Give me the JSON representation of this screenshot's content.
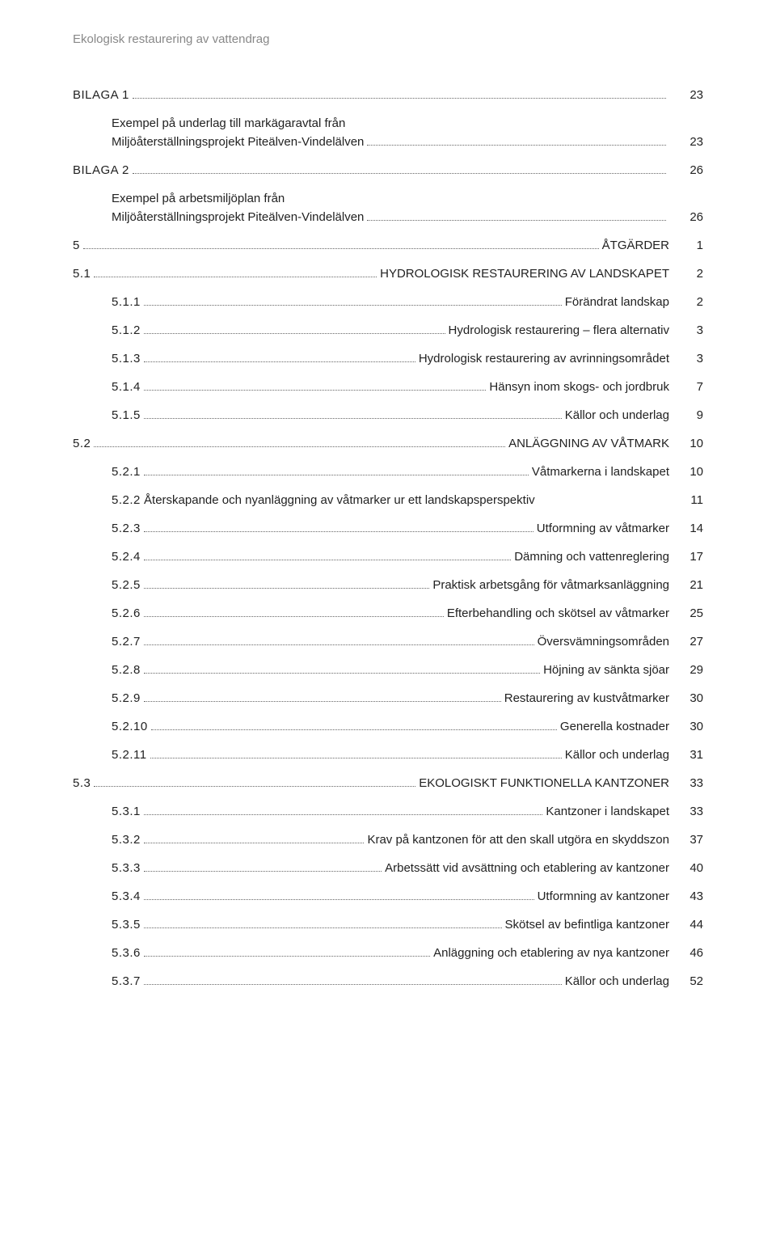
{
  "header": "Ekologisk restaurering av vattendrag",
  "entries": [
    {
      "type": "line",
      "sub": false,
      "lead_num": "BILAGA 1",
      "lead_txt": "",
      "tail": "",
      "page": "23"
    },
    {
      "type": "desc",
      "text": "Exempel på underlag till markägaravtal från\nMiljöåterställningsprojekt Piteälven-Vindelälven",
      "trail_page": "23"
    },
    {
      "type": "line",
      "sub": false,
      "lead_num": "BILAGA 2",
      "lead_txt": "",
      "tail": "",
      "page": "26"
    },
    {
      "type": "desc",
      "text": "Exempel på arbetsmiljöplan från\nMiljöåterställningsprojekt Piteälven-Vindelälven",
      "trail_page": "26"
    },
    {
      "type": "line",
      "sub": false,
      "lead_num": "5",
      "lead_txt": "",
      "tail": "ÅTGÄRDER",
      "page": "1"
    },
    {
      "type": "line",
      "sub": false,
      "lead_num": "5.1",
      "lead_txt": "",
      "tail": "HYDROLOGISK RESTAURERING AV LANDSKAPET",
      "page": "2"
    },
    {
      "type": "line",
      "sub": true,
      "lead_num": "5.1.1",
      "lead_txt": "",
      "tail": "Förändrat landskap",
      "page": "2"
    },
    {
      "type": "line",
      "sub": true,
      "lead_num": "5.1.2",
      "lead_txt": "",
      "tail": "Hydrologisk restaurering – flera alternativ",
      "page": "3"
    },
    {
      "type": "line",
      "sub": true,
      "lead_num": "5.1.3",
      "lead_txt": "",
      "tail": "Hydrologisk restaurering av avrinningsområdet",
      "page": "3"
    },
    {
      "type": "line",
      "sub": true,
      "lead_num": "5.1.4",
      "lead_txt": "",
      "tail": "Hänsyn inom skogs- och jordbruk",
      "page": "7"
    },
    {
      "type": "line",
      "sub": true,
      "lead_num": "5.1.5",
      "lead_txt": "",
      "tail": "Källor och underlag",
      "page": "9"
    },
    {
      "type": "line",
      "sub": false,
      "lead_num": "5.2",
      "lead_txt": "",
      "tail": "ANLÄGGNING AV VÅTMARK",
      "page": "10"
    },
    {
      "type": "line",
      "sub": true,
      "lead_num": "5.2.1",
      "lead_txt": "",
      "tail": "Våtmarkerna i landskapet",
      "page": "10"
    },
    {
      "type": "full",
      "sub": true,
      "lead_num": "5.2.2",
      "lead_txt": "Återskapande och nyanläggning av våtmarker ur ett landskapsperspektiv",
      "tail": "",
      "page": "11"
    },
    {
      "type": "line",
      "sub": true,
      "lead_num": "5.2.3",
      "lead_txt": "",
      "tail": "Utformning av våtmarker",
      "page": "14"
    },
    {
      "type": "line",
      "sub": true,
      "lead_num": "5.2.4",
      "lead_txt": "",
      "tail": "Dämning och vattenreglering",
      "page": "17"
    },
    {
      "type": "line",
      "sub": true,
      "lead_num": "5.2.5",
      "lead_txt": "",
      "tail": "Praktisk arbetsgång för våtmarksanläggning",
      "page": "21"
    },
    {
      "type": "line",
      "sub": true,
      "lead_num": "5.2.6",
      "lead_txt": "",
      "tail": "Efterbehandling och skötsel av våtmarker",
      "page": "25"
    },
    {
      "type": "line",
      "sub": true,
      "lead_num": "5.2.7",
      "lead_txt": "",
      "tail": "Översvämningsområden",
      "page": "27"
    },
    {
      "type": "line",
      "sub": true,
      "lead_num": "5.2.8",
      "lead_txt": "",
      "tail": "Höjning av sänkta sjöar",
      "page": "29"
    },
    {
      "type": "line",
      "sub": true,
      "lead_num": "5.2.9",
      "lead_txt": "",
      "tail": "Restaurering av kustvåtmarker",
      "page": "30"
    },
    {
      "type": "line",
      "sub": true,
      "lead_num": "5.2.10",
      "lead_txt": "",
      "tail": "Generella kostnader",
      "page": "30"
    },
    {
      "type": "line",
      "sub": true,
      "lead_num": "5.2.11",
      "lead_txt": "",
      "tail": "Källor och underlag",
      "page": "31"
    },
    {
      "type": "line",
      "sub": false,
      "lead_num": "5.3",
      "lead_txt": "",
      "tail": "EKOLOGISKT FUNKTIONELLA KANTZONER",
      "page": "33"
    },
    {
      "type": "line",
      "sub": true,
      "lead_num": "5.3.1",
      "lead_txt": "",
      "tail": "Kantzoner i landskapet",
      "page": "33"
    },
    {
      "type": "line",
      "sub": true,
      "lead_num": "5.3.2",
      "lead_txt": "",
      "tail": "Krav på kantzonen för att den skall utgöra en skyddszon",
      "page": "37"
    },
    {
      "type": "line",
      "sub": true,
      "lead_num": "5.3.3",
      "lead_txt": "",
      "tail": "Arbetssätt vid avsättning och etablering av kantzoner",
      "page": "40"
    },
    {
      "type": "line",
      "sub": true,
      "lead_num": "5.3.4",
      "lead_txt": "",
      "tail": "Utformning av kantzoner",
      "page": "43"
    },
    {
      "type": "line",
      "sub": true,
      "lead_num": "5.3.5",
      "lead_txt": "",
      "tail": "Skötsel av befintliga kantzoner",
      "page": "44"
    },
    {
      "type": "line",
      "sub": true,
      "lead_num": "5.3.6",
      "lead_txt": "",
      "tail": "Anläggning och etablering av nya kantzoner",
      "page": "46"
    },
    {
      "type": "line",
      "sub": true,
      "lead_num": "5.3.7",
      "lead_txt": "",
      "tail": "Källor och underlag",
      "page": "52"
    }
  ]
}
